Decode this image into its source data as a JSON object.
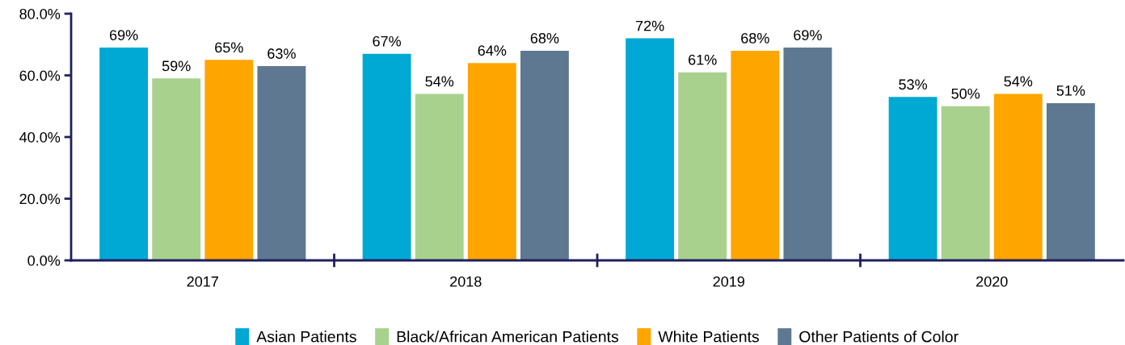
{
  "chart_data": {
    "type": "bar",
    "categories": [
      "2017",
      "2018",
      "2019",
      "2020"
    ],
    "series": [
      {
        "name": "Asian Patients",
        "color": "#00a8d4",
        "values": [
          69,
          67,
          72,
          53
        ],
        "value_labels": [
          "69%",
          "67%",
          "72%",
          "53%"
        ]
      },
      {
        "name": "Black/African American Patients",
        "color": "#a9d18e",
        "values": [
          59,
          54,
          61,
          50
        ],
        "value_labels": [
          "59%",
          "54%",
          "61%",
          "50%"
        ]
      },
      {
        "name": "White Patients",
        "color": "#ffa500",
        "values": [
          65,
          64,
          68,
          54
        ],
        "value_labels": [
          "65%",
          "64%",
          "68%",
          "54%"
        ]
      },
      {
        "name": "Other Patients of Color",
        "color": "#5f7892",
        "values": [
          63,
          68,
          69,
          51
        ],
        "value_labels": [
          "63%",
          "68%",
          "69%",
          "51%"
        ]
      }
    ],
    "ylim": [
      0,
      80
    ],
    "yticks": [
      {
        "value": 0,
        "label": "0.0%"
      },
      {
        "value": 20,
        "label": "20.0%"
      },
      {
        "value": 40,
        "label": "40.0%"
      },
      {
        "value": 60,
        "label": "60.0%"
      },
      {
        "value": 80,
        "label": "80.0%"
      }
    ],
    "grid": false,
    "legend": "bottom"
  }
}
